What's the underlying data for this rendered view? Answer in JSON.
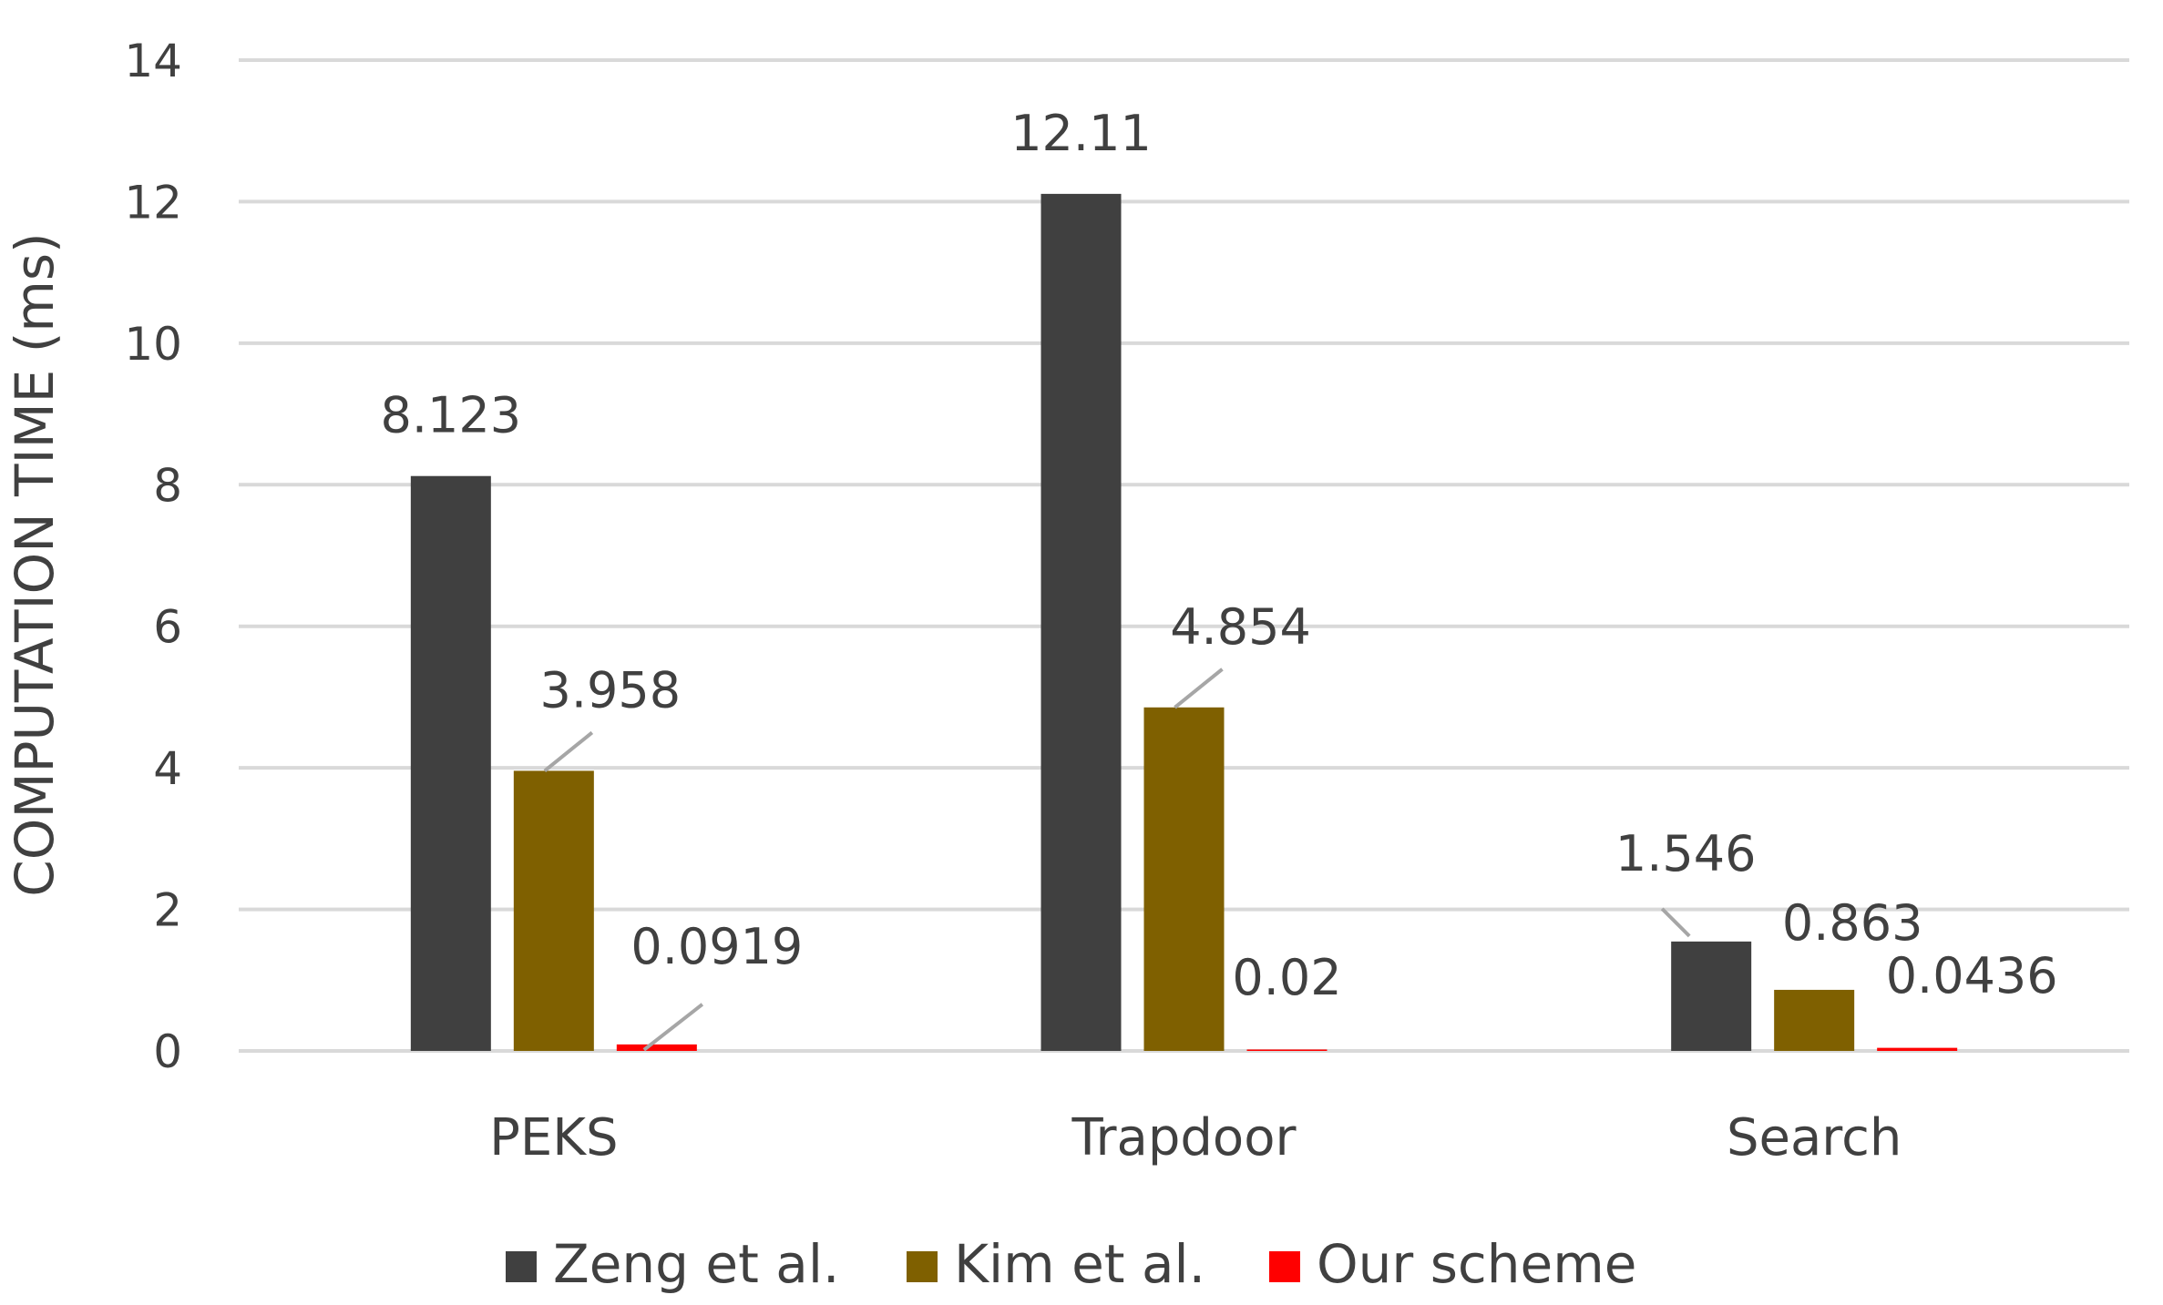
{
  "chart_data": {
    "type": "bar",
    "categories": [
      "PEKS",
      "Trapdoor",
      "Search"
    ],
    "series": [
      {
        "name": "Zeng et al.",
        "color": "#404040",
        "values": [
          8.123,
          12.11,
          1.546
        ],
        "labels": [
          "8.123",
          "12.11",
          "1.546"
        ]
      },
      {
        "name": "Kim et al.",
        "color": "#7f6000",
        "values": [
          3.958,
          4.854,
          0.863
        ],
        "labels": [
          "3.958",
          "4.854",
          "0.863"
        ]
      },
      {
        "name": "Our scheme",
        "color": "#ff0000",
        "values": [
          0.0919,
          0.02,
          0.0436
        ],
        "labels": [
          "0.0919",
          "0.02",
          "0.0436"
        ]
      }
    ],
    "ylabel": "COMPUTATION TIME (ms)",
    "xlabel": "",
    "ylim": [
      0,
      14
    ],
    "yticks": [
      0,
      2,
      4,
      6,
      8,
      10,
      12,
      14
    ],
    "grid": true,
    "legend_position": "bottom"
  }
}
